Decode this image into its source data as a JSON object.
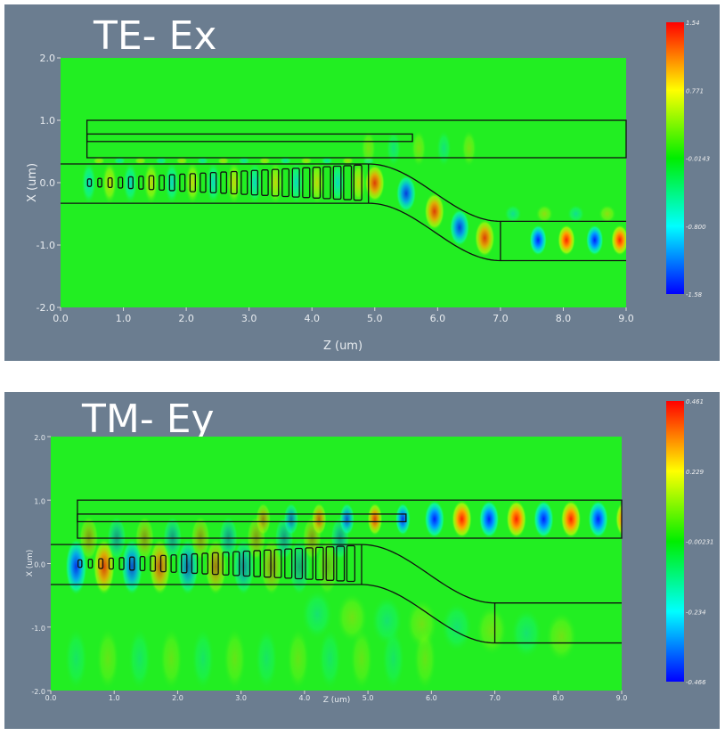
{
  "chart_data": [
    {
      "type": "heatmap",
      "title": "TE- Ex",
      "xlabel": "Z (um)",
      "ylabel": "X (um)",
      "xlim": [
        0,
        9
      ],
      "ylim": [
        -2,
        2
      ],
      "xticks": [
        "0.0",
        "1.0",
        "2.0",
        "3.0",
        "4.0",
        "5.0",
        "6.0",
        "7.0",
        "8.0",
        "9.0"
      ],
      "yticks": [
        "2.0",
        "1.0",
        "0.0",
        "-1.0",
        "-2.0"
      ],
      "colorbar": {
        "ticks": [
          "1.54",
          "0.771",
          "-0.0143",
          "-0.800",
          "-1.58"
        ],
        "colors": [
          "#ff0000",
          "#ffff00",
          "#00ff00",
          "#00ffff",
          "#0000ff"
        ]
      }
    },
    {
      "type": "heatmap",
      "title": "TM- Ey",
      "xlabel": "Z (um)",
      "ylabel": "X (um)",
      "xlim": [
        0,
        9
      ],
      "ylim": [
        -2,
        2
      ],
      "xticks": [
        "0.0",
        "1.0",
        "2.0",
        "3.0",
        "4.0",
        "5.0",
        "6.0",
        "7.0",
        "8.0",
        "9.0"
      ],
      "yticks": [
        "2.0",
        "1.0",
        "0.0",
        "-1.0",
        "-2.0"
      ],
      "colorbar": {
        "ticks": [
          "0.461",
          "0.229",
          "-0.00231",
          "-0.234",
          "-0.466"
        ],
        "colors": [
          "#ff0000",
          "#ffff00",
          "#00ff00",
          "#00ffff",
          "#0000ff"
        ]
      }
    }
  ],
  "colors": {
    "panel_bg": "#6b7d90",
    "field_zero": "#22ee22"
  }
}
